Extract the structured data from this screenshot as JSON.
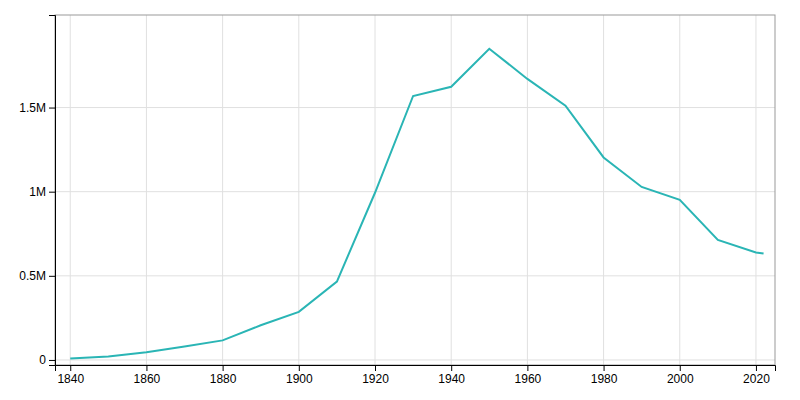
{
  "chart_data": {
    "type": "line",
    "x": [
      1840,
      1850,
      1860,
      1870,
      1880,
      1890,
      1900,
      1910,
      1920,
      1930,
      1940,
      1950,
      1960,
      1970,
      1980,
      1990,
      2000,
      2010,
      2020,
      2022
    ],
    "values": [
      9102,
      21019,
      45619,
      79577,
      116340,
      205876,
      285704,
      465766,
      993678,
      1568662,
      1623452,
      1849568,
      1670144,
      1511482,
      1203339,
      1027974,
      951270,
      713777,
      639111,
      632464
    ],
    "color": "#2ab5b5",
    "xlim": [
      1836,
      2025
    ],
    "ylim": [
      -30000,
      2050000
    ],
    "xticks": [
      1840,
      1860,
      1880,
      1900,
      1920,
      1940,
      1960,
      1980,
      2000,
      2020
    ],
    "yticks": [
      0,
      {
        "value": 500000,
        "label": "0.5M"
      },
      {
        "value": 1000000,
        "label": "1M"
      },
      {
        "value": 1500000,
        "label": "1.5M"
      }
    ],
    "grid": true
  }
}
